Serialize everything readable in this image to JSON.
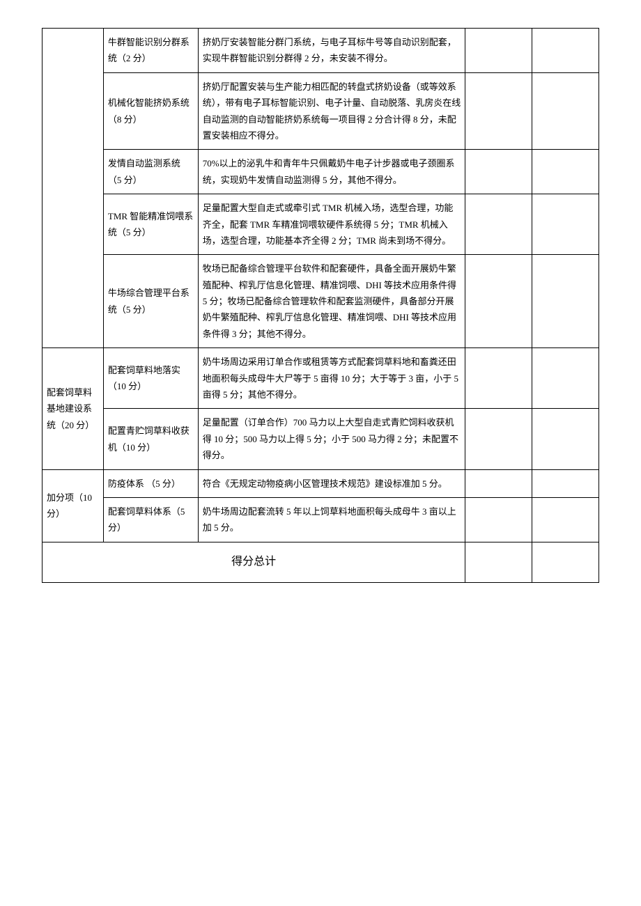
{
  "rows": [
    {
      "cat": "",
      "sub": "牛群智能识别分群系统（2 分）",
      "desc": "挤奶厅安装智能分群门系统，与电子耳标牛号等自动识别配套，实现牛群智能识别分群得 2 分，未安装不得分。"
    },
    {
      "sub": "机械化智能挤奶系统（8 分）",
      "desc": "挤奶厅配置安装与生产能力相匹配的转盘式挤奶设备（或等效系统），带有电子耳标智能识别、电子计量、自动脱落、乳房炎在线自动监测的自动智能挤奶系统每一项目得 2 分合计得 8 分，未配置安装相应不得分。"
    },
    {
      "sub": "发情自动监测系统（5 分）",
      "desc": "70%以上的泌乳牛和青年牛只佩戴奶牛电子计步器或电子颈圈系统，实现奶牛发情自动监测得 5 分，其他不得分。"
    },
    {
      "sub": "TMR 智能精准饲喂系统（5 分）",
      "desc": "足量配置大型自走式或牵引式 TMR 机械入场，选型合理，功能齐全，配套 TMR 车精准饲喂软硬件系统得 5 分；TMR 机械入场，选型合理，功能基本齐全得 2 分；TMR 尚未到场不得分。"
    },
    {
      "sub": "牛场综合管理平台系统（5 分）",
      "desc": "牧场已配备综合管理平台软件和配套硬件，具备全面开展奶牛繁殖配种、榨乳厅信息化管理、精准饲喂、DHI 等技术应用条件得 5 分；牧场已配备综合管理软件和配套监测硬件，具备部分开展奶牛繁殖配种、榨乳厅信息化管理、精准饲喂、DHI 等技术应用条件得 3 分；其他不得分。"
    },
    {
      "cat": "配套饲草料基地建设系统（20 分）",
      "sub": "配套饲草料地落实（10 分）",
      "desc": "奶牛场周边采用订单合作或租赁等方式配套饲草料地和畜粪还田地面积每头成母牛大尸等于 5 亩得 10 分；大于等于 3 亩，小于 5 亩得 5 分；其他不得分。"
    },
    {
      "sub": "配置青贮饲草料收获机（10 分）",
      "desc": "足量配置（订单合作）700 马力以上大型自走式青贮饲料收获机得 10 分；500 马力以上得 5 分；小于 500 马力得 2 分；未配置不得分。"
    },
    {
      "cat": "加分项（10 分）",
      "sub": "防疫体系 （5 分）",
      "desc": "符合《无规定动物疫病小区管理技术规范》建设标准加 5 分。"
    },
    {
      "sub": "配套饲草料体系（5 分）",
      "desc": "奶牛场周边配套流转 5 年以上饲草料地面积每头成母牛 3 亩以上加 5 分。"
    }
  ],
  "total_label": "得分总计"
}
